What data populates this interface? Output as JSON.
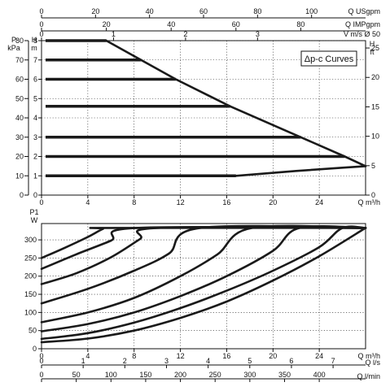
{
  "chart_data": [
    {
      "type": "line",
      "name": "head-curves",
      "legend": "Δp-c Curves",
      "top_axes": [
        {
          "label": "Q USgpm",
          "range": [
            0,
            120
          ],
          "ticks": [
            "0",
            "20",
            "40",
            "60",
            "80",
            "100"
          ]
        },
        {
          "label": "Q IMPgpm",
          "range": [
            0,
            100
          ],
          "ticks": [
            "0",
            "20",
            "40",
            "60",
            "80"
          ]
        },
        {
          "label": "V m/s Ø 50",
          "range": [
            0,
            4.5
          ],
          "ticks": [
            "0",
            "1",
            "2",
            "3"
          ]
        }
      ],
      "x": {
        "label": "Q m³/h",
        "range": [
          0,
          28
        ],
        "ticks": [
          "0",
          "4",
          "8",
          "12",
          "16",
          "20",
          "24"
        ]
      },
      "y_left_kpa": {
        "label": "P kPa",
        "range": [
          0,
          80
        ],
        "ticks": [
          "0",
          "10",
          "20",
          "30",
          "40",
          "50",
          "60",
          "70",
          "80"
        ]
      },
      "y_left_m": {
        "label": "H m",
        "range": [
          0,
          8
        ],
        "ticks": [
          "0",
          "1",
          "2",
          "3",
          "4",
          "5",
          "6",
          "7",
          "8"
        ]
      },
      "y_right_ft": {
        "label": "H ft",
        "range": [
          0,
          26.25
        ],
        "ticks": [
          "0",
          "5",
          "10",
          "15",
          "20",
          "25"
        ]
      },
      "head_levels": [
        {
          "h": 8,
          "q_end": 5.6
        },
        {
          "h": 7,
          "q_end": 8.6
        },
        {
          "h": 6,
          "q_end": 11.6
        },
        {
          "h": 4.6,
          "q_end": 16.3
        },
        {
          "h": 3,
          "q_end": 22.4
        },
        {
          "h": 2,
          "q_end": 26.2
        },
        {
          "h": 1,
          "q_end": 16.8
        }
      ],
      "limit_curve": [
        [
          5.6,
          8
        ],
        [
          8.6,
          7
        ],
        [
          11.6,
          6
        ],
        [
          16.3,
          4.6
        ],
        [
          22.4,
          3
        ],
        [
          26.2,
          2
        ],
        [
          28,
          1.5
        ]
      ],
      "min_curve": [
        [
          16.8,
          1
        ],
        [
          22.0,
          1.25
        ],
        [
          26.0,
          1.42
        ],
        [
          28,
          1.5
        ]
      ]
    },
    {
      "type": "line",
      "name": "power-curves",
      "x": {
        "label": "Q m³/h",
        "range": [
          0,
          28
        ],
        "ticks": [
          "0",
          "4",
          "8",
          "12",
          "16",
          "20",
          "24"
        ]
      },
      "y": {
        "label": "P1 W",
        "range": [
          0,
          345
        ],
        "ticks": [
          "0",
          "50",
          "100",
          "150",
          "200",
          "250",
          "300"
        ]
      },
      "bottom_axes": [
        {
          "label": "Q l/s",
          "range": [
            0,
            7.78
          ],
          "ticks": [
            "0",
            "1",
            "2",
            "3",
            "4",
            "5",
            "6",
            "7"
          ]
        },
        {
          "label": "Q l/min",
          "range": [
            0,
            466.7
          ],
          "ticks": [
            "0",
            "50",
            "100",
            "150",
            "200",
            "250",
            "300",
            "350",
            "400"
          ]
        }
      ],
      "series": [
        {
          "values": [
            [
              0,
              250
            ],
            [
              2,
              278
            ],
            [
              4,
              308
            ],
            [
              5.3,
              330
            ],
            [
              6,
              333
            ],
            [
              28,
              333
            ]
          ]
        },
        {
          "values": [
            [
              0,
              220
            ],
            [
              3,
              260
            ],
            [
              6,
              298
            ],
            [
              8.2,
              333
            ],
            [
              28,
              333
            ]
          ]
        },
        {
          "values": [
            [
              0,
              178
            ],
            [
              3,
              208
            ],
            [
              6,
              252
            ],
            [
              8.5,
              302
            ],
            [
              10,
              333
            ],
            [
              28,
              333
            ]
          ]
        },
        {
          "values": [
            [
              0,
              125
            ],
            [
              4,
              165
            ],
            [
              8,
              215
            ],
            [
              11,
              262
            ],
            [
              13.7,
              333
            ],
            [
              28,
              333
            ]
          ]
        },
        {
          "values": [
            [
              0,
              73
            ],
            [
              4,
              100
            ],
            [
              8,
              140
            ],
            [
              12,
              200
            ],
            [
              15.2,
              260
            ],
            [
              18.2,
              333
            ],
            [
              28,
              333
            ]
          ]
        },
        {
          "values": [
            [
              0,
              48
            ],
            [
              4,
              68
            ],
            [
              8,
              100
            ],
            [
              12,
              145
            ],
            [
              16,
              200
            ],
            [
              20,
              270
            ],
            [
              22.3,
              333
            ],
            [
              28,
              333
            ]
          ]
        },
        {
          "values": [
            [
              0,
              27
            ],
            [
              4,
              43
            ],
            [
              8,
              72
            ],
            [
              12,
              112
            ],
            [
              16,
              160
            ],
            [
              20,
              215
            ],
            [
              24,
              280
            ],
            [
              26,
              333
            ],
            [
              28,
              333
            ]
          ]
        },
        {
          "values": [
            [
              0,
              18
            ],
            [
              4,
              28
            ],
            [
              8,
              50
            ],
            [
              12,
              85
            ],
            [
              16,
              130
            ],
            [
              20,
              188
            ],
            [
              24,
              255
            ],
            [
              28,
              333
            ]
          ]
        }
      ]
    }
  ]
}
